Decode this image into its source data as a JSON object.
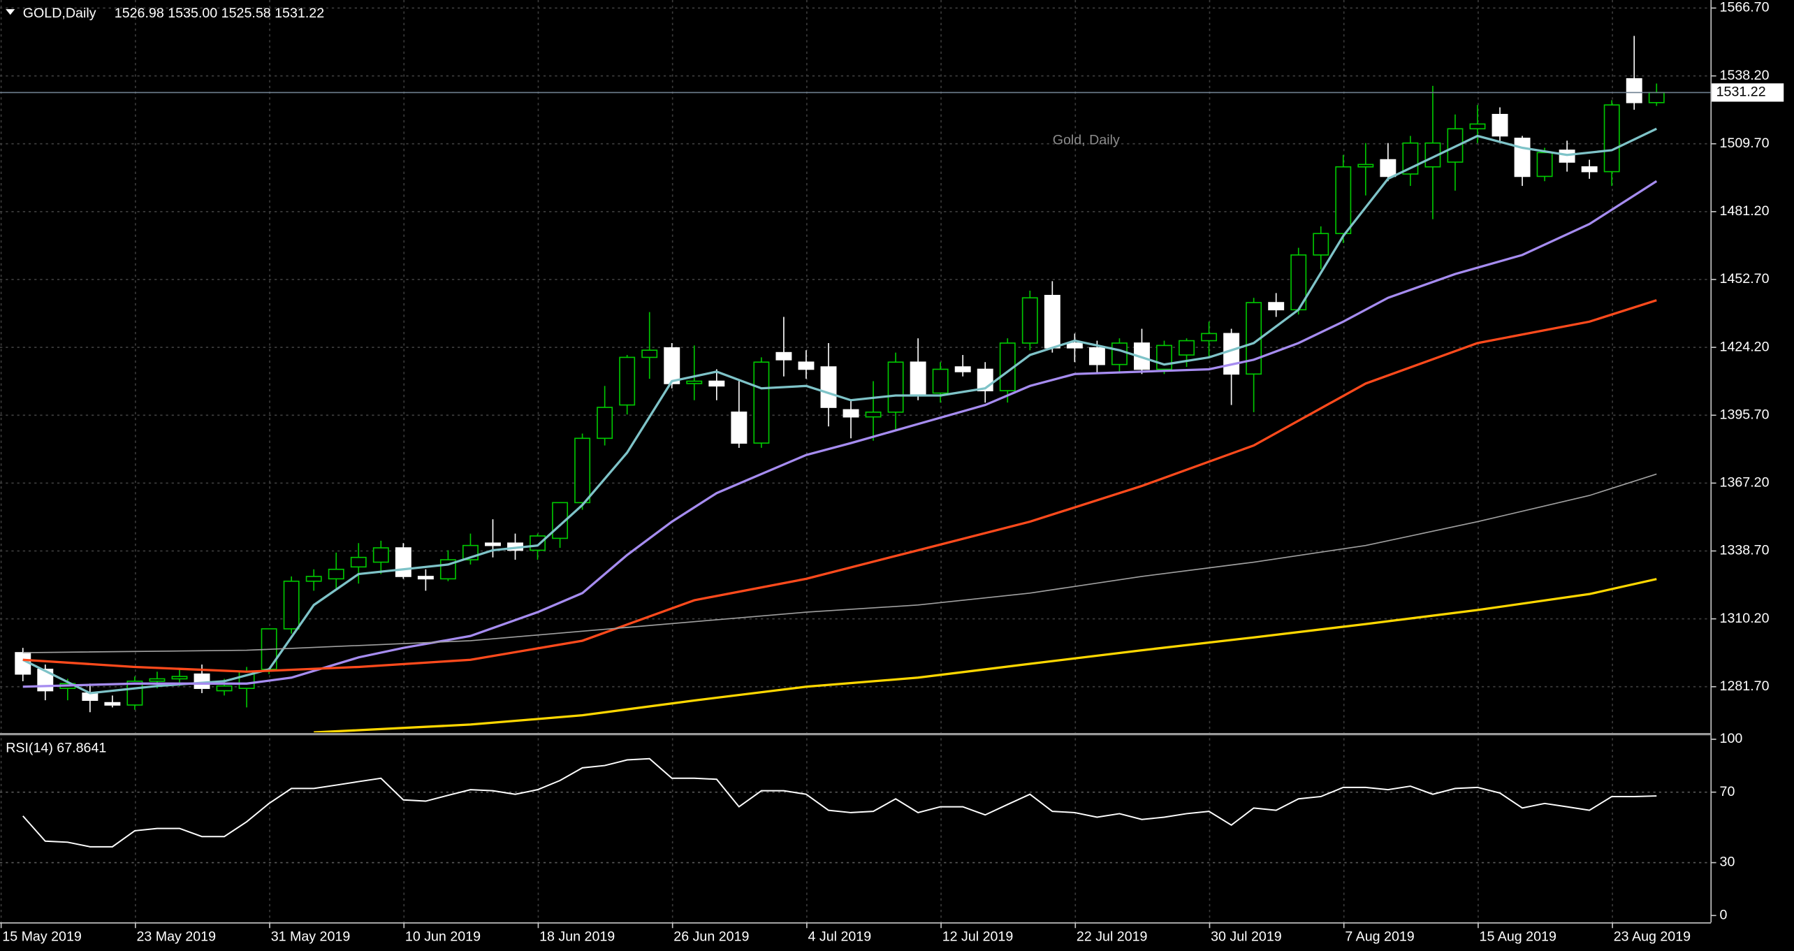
{
  "chart_data": [
    {
      "type": "candlestick",
      "title": "GOLD,Daily",
      "subtitle": "1526.98 1535.00 1525.58 1531.22",
      "watermark": "Gold, Daily",
      "categories": [
        "15 May 2019",
        null,
        null,
        null,
        null,
        null,
        "23 May 2019",
        null,
        null,
        null,
        null,
        null,
        "31 May 2019",
        null,
        null,
        null,
        null,
        null,
        "10 Jun 2019",
        null,
        null,
        null,
        null,
        null,
        "18 Jun 2019",
        null,
        null,
        null,
        null,
        null,
        "26 Jun 2019",
        null,
        null,
        null,
        null,
        null,
        "4 Jul 2019",
        null,
        null,
        null,
        null,
        null,
        "12 Jul 2019",
        null,
        null,
        null,
        null,
        null,
        "22 Jul 2019",
        null,
        null,
        null,
        null,
        null,
        "30 Jul 2019",
        null,
        null,
        null,
        null,
        null,
        "7 Aug 2019",
        null,
        null,
        null,
        null,
        null,
        "15 Aug 2019",
        null,
        null,
        null,
        null,
        null,
        "23 Aug 2019",
        null
      ],
      "open": [
        1296,
        1289,
        1281,
        1279,
        1275,
        1274,
        1284,
        1285,
        1287,
        1280,
        1281,
        1289,
        1306,
        1326,
        1327,
        1332,
        1334,
        1340,
        1328,
        1327,
        1335,
        1342,
        1342,
        1339,
        1344,
        1359,
        1386,
        1400,
        1420,
        1424,
        1409,
        1410,
        1397,
        1384,
        1422,
        1418,
        1416,
        1398,
        1395,
        1397,
        1418,
        1405,
        1416,
        1415,
        1406,
        1426,
        1446,
        1426,
        1424,
        1417,
        1426,
        1415,
        1421,
        1427,
        1430,
        1413,
        1443,
        1440,
        1463,
        1472,
        1500,
        1503,
        1497,
        1500,
        1502,
        1516,
        1522,
        1512,
        1496,
        1507,
        1500,
        1498,
        1537,
        1526.98
      ],
      "high": [
        1298,
        1291,
        1285,
        1283,
        1278,
        1286,
        1288,
        1289,
        1291,
        1285,
        1290,
        1306,
        1328,
        1331,
        1338,
        1342,
        1343,
        1342,
        1331,
        1339,
        1346,
        1352,
        1346,
        1346,
        1359,
        1388,
        1408,
        1421,
        1439,
        1426,
        1425,
        1415,
        1410,
        1420,
        1437,
        1423,
        1426,
        1402,
        1410,
        1422,
        1428,
        1418,
        1421,
        1418,
        1428,
        1448,
        1452,
        1430,
        1427,
        1428,
        1432,
        1427,
        1428,
        1435,
        1432,
        1445,
        1447,
        1466,
        1475,
        1505,
        1510,
        1510,
        1513,
        1534,
        1522,
        1526,
        1525,
        1513,
        1508,
        1511,
        1503,
        1528,
        1555,
        1535
      ],
      "low": [
        1284,
        1276,
        1276,
        1271,
        1273,
        1272,
        1281,
        1282,
        1279,
        1278,
        1273,
        1287,
        1304,
        1322,
        1323,
        1325,
        1329,
        1327,
        1322,
        1326,
        1333,
        1336,
        1335,
        1335,
        1340,
        1356,
        1383,
        1396,
        1411,
        1407,
        1402,
        1402,
        1382,
        1382,
        1412,
        1411,
        1391,
        1386,
        1385,
        1389,
        1402,
        1401,
        1412,
        1401,
        1401,
        1423,
        1422,
        1418,
        1413,
        1414,
        1413,
        1413,
        1416,
        1420,
        1400,
        1397,
        1437,
        1438,
        1457,
        1468,
        1488,
        1494,
        1492,
        1478,
        1490,
        1510,
        1510,
        1492,
        1494,
        1498,
        1495,
        1492,
        1524,
        1525.58
      ],
      "close": [
        1287,
        1280,
        1283,
        1276,
        1274,
        1284,
        1285,
        1286,
        1281,
        1282,
        1288,
        1306,
        1326,
        1328,
        1331,
        1336,
        1340,
        1328,
        1327,
        1335,
        1341,
        1341,
        1339,
        1345,
        1359,
        1386,
        1399,
        1420,
        1423,
        1409,
        1410,
        1408,
        1384,
        1418,
        1419,
        1415,
        1399,
        1395,
        1397,
        1418,
        1404,
        1415,
        1414,
        1406,
        1426,
        1445,
        1424,
        1424,
        1417,
        1426,
        1415,
        1425,
        1427,
        1430,
        1413,
        1443,
        1440,
        1463,
        1472,
        1500,
        1501,
        1496,
        1510,
        1510,
        1516,
        1518,
        1513,
        1496,
        1506,
        1502,
        1498,
        1526,
        1527,
        1531.22
      ],
      "up_color": "#00c800",
      "down_color": "#ffffff",
      "series": [
        {
          "color": "#7ec3c8",
          "x": [
            0,
            3,
            6,
            9,
            11,
            13,
            15,
            17,
            19,
            21,
            23,
            25,
            27,
            29,
            31,
            33,
            35,
            37,
            39,
            41,
            43,
            45,
            47,
            49,
            51,
            53,
            55,
            57,
            59,
            61,
            63,
            65,
            67,
            69,
            71,
            73
          ],
          "values": [
            1293,
            1279,
            1282,
            1284,
            1289,
            1316,
            1329,
            1331,
            1333,
            1339,
            1341,
            1358,
            1380,
            1410,
            1414,
            1407,
            1408,
            1402,
            1404,
            1404,
            1407,
            1421,
            1427,
            1423,
            1417,
            1420,
            1426,
            1440,
            1471,
            1495,
            1504,
            1513,
            1508,
            1505,
            1507,
            1516
          ]
        },
        {
          "color": "#a68cf0",
          "x": [
            0,
            5,
            10,
            12,
            15,
            17,
            20,
            23,
            25,
            27,
            29,
            31,
            33,
            35,
            37,
            40,
            43,
            45,
            47,
            50,
            53,
            55,
            57,
            59,
            61,
            64,
            67,
            70,
            73
          ],
          "values": [
            1281.7,
            1283,
            1283,
            1285.5,
            1294,
            1298,
            1303,
            1313,
            1321,
            1337,
            1351,
            1363,
            1371,
            1379,
            1384,
            1392,
            1400,
            1408,
            1413,
            1414,
            1415,
            1419,
            1426,
            1435,
            1445,
            1455,
            1463,
            1476,
            1494
          ]
        },
        {
          "color": "#ff4a1c",
          "x": [
            0,
            5,
            10,
            15,
            20,
            25,
            30,
            35,
            40,
            45,
            50,
            55,
            60,
            65,
            70,
            73
          ],
          "values": [
            1293,
            1290,
            1288,
            1290,
            1293,
            1301,
            1318,
            1327,
            1339,
            1351,
            1366,
            1383,
            1409,
            1426,
            1435,
            1444
          ]
        },
        {
          "color": "#a0a0a0",
          "x": [
            0,
            10,
            20,
            25,
            30,
            35,
            40,
            45,
            50,
            55,
            60,
            65,
            70,
            73
          ],
          "values": [
            1296,
            1297,
            1301,
            1305,
            1309,
            1313,
            1316,
            1321,
            1328,
            1334,
            1341,
            1351,
            1362,
            1371
          ]
        },
        {
          "color": "#ffd700",
          "x": [
            13,
            20,
            25,
            30,
            35,
            40,
            45,
            50,
            55,
            60,
            65,
            70,
            73
          ],
          "values": [
            1262.5,
            1265.8,
            1269.7,
            1275.9,
            1281.7,
            1285.5,
            1291.3,
            1297,
            1302.4,
            1308,
            1313.9,
            1320.6,
            1326.9
          ]
        }
      ],
      "current_price": {
        "value": 1531.22,
        "label": "1531.22"
      },
      "ylim": [
        1262.5,
        1570.07
      ],
      "yticks": [
        {
          "value": 1281.7,
          "label": "1281.70"
        },
        {
          "value": 1310.2,
          "label": "1310.20"
        },
        {
          "value": 1338.7,
          "label": "1338.70"
        },
        {
          "value": 1367.2,
          "label": "1367.20"
        },
        {
          "value": 1395.7,
          "label": "1395.70"
        },
        {
          "value": 1424.2,
          "label": "1424.20"
        },
        {
          "value": 1452.7,
          "label": "1452.70"
        },
        {
          "value": 1481.2,
          "label": "1481.20"
        },
        {
          "value": 1509.7,
          "label": "1509.70"
        },
        {
          "value": 1538.2,
          "label": "1538.20"
        },
        {
          "value": 1566.7,
          "label": "1566.70"
        }
      ],
      "grid": true
    },
    {
      "type": "line",
      "title": "RSI(14) 67.8641",
      "color": "#ffffff",
      "values": [
        56.5,
        42.2,
        41.6,
        39.0,
        39.0,
        48.1,
        49.4,
        49.4,
        44.8,
        44.8,
        53.2,
        63.6,
        72.1,
        72.1,
        74.0,
        76.0,
        77.9,
        65.6,
        64.9,
        68.2,
        71.4,
        70.8,
        68.8,
        71.4,
        76.6,
        83.8,
        85.1,
        88.3,
        89.0,
        77.9,
        77.9,
        77.3,
        61.7,
        70.8,
        70.8,
        68.8,
        59.7,
        58.4,
        59.1,
        66.2,
        58.4,
        61.7,
        61.7,
        57.1,
        63.0,
        68.8,
        59.1,
        58.4,
        55.8,
        57.8,
        54.5,
        55.8,
        57.8,
        59.1,
        51.3,
        61.0,
        59.7,
        66.2,
        67.5,
        72.7,
        72.7,
        71.4,
        73.4,
        68.8,
        72.1,
        72.7,
        69.5,
        61.0,
        63.6,
        61.7,
        59.7,
        67.5,
        67.5,
        67.8641
      ],
      "ylim": [
        0,
        100
      ],
      "yticks": [
        0,
        30,
        70,
        100
      ],
      "grid": true
    }
  ]
}
